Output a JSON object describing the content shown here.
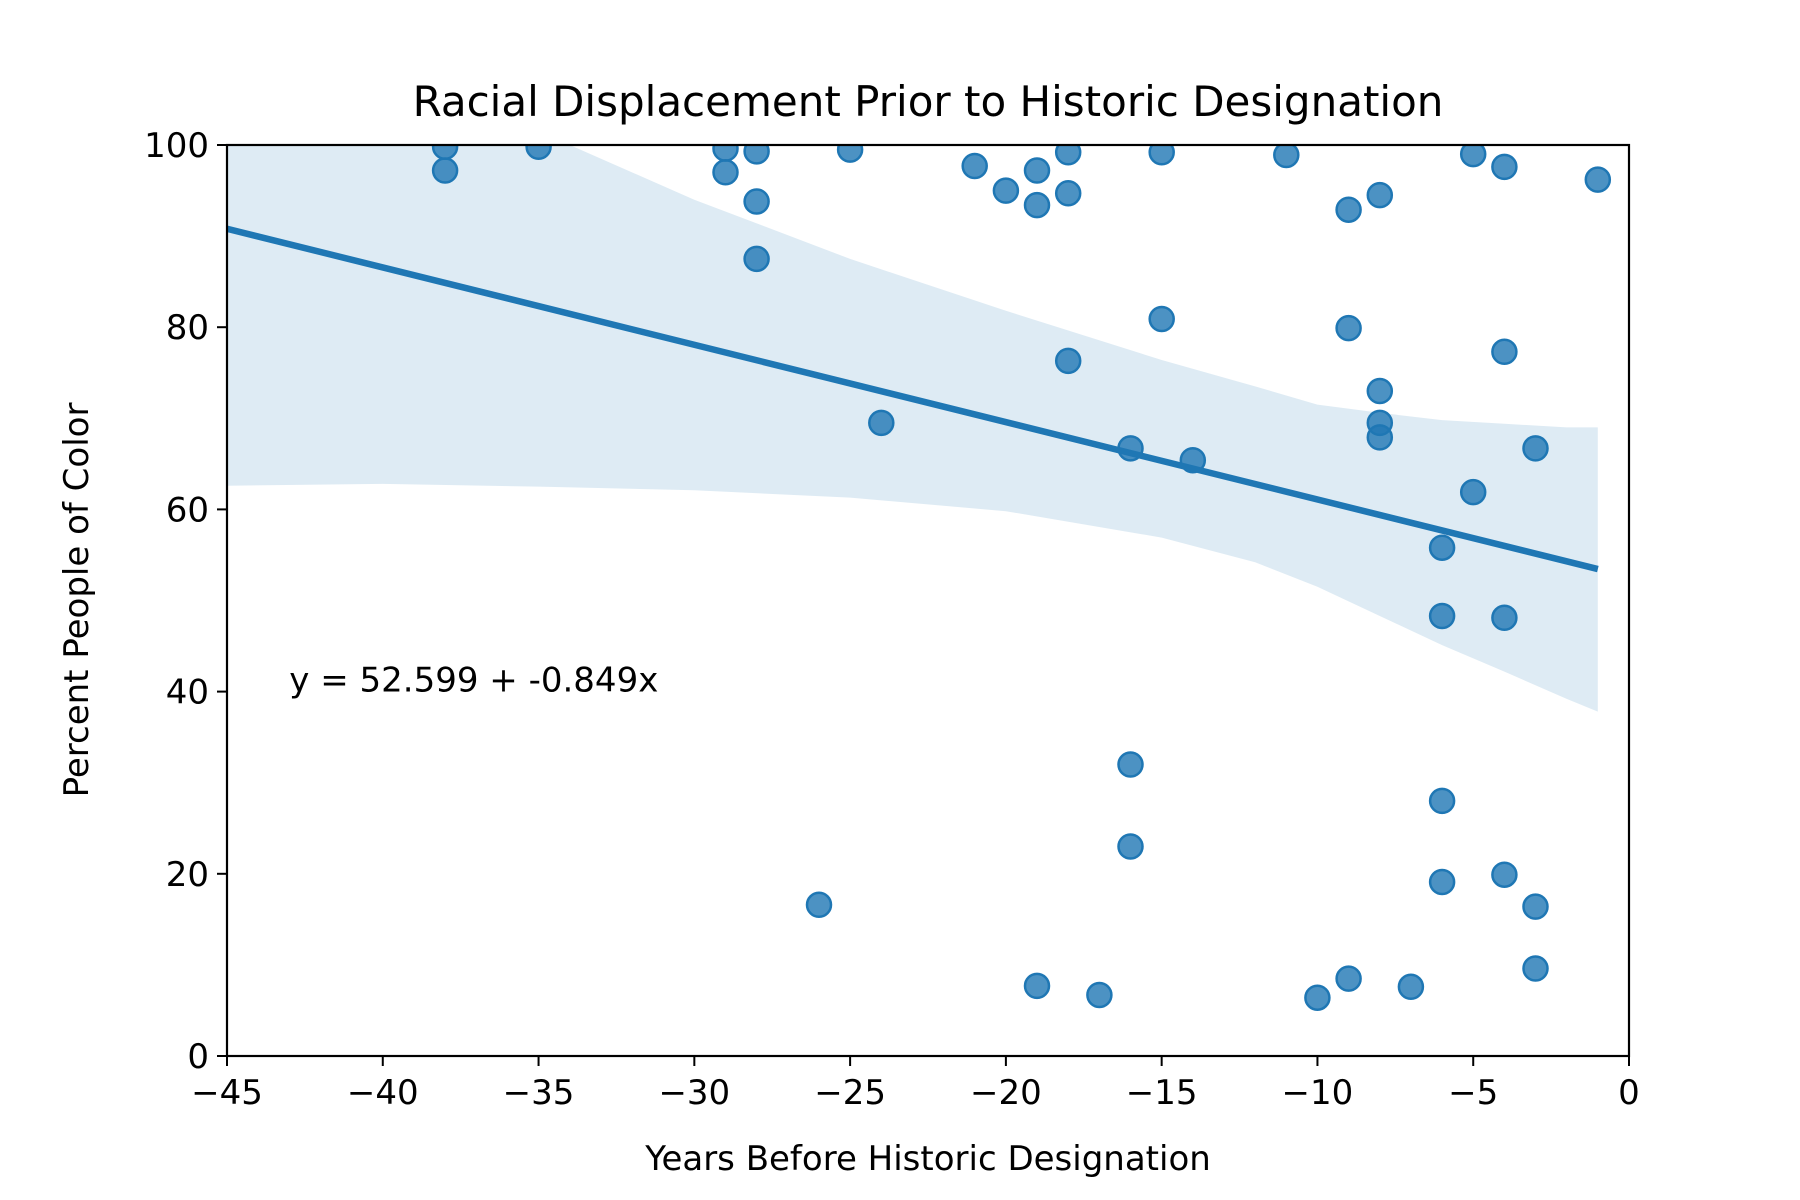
{
  "chart_data": {
    "type": "scatter",
    "title": "Racial Displacement Prior to Historic Designation",
    "xlabel": "Years Before Historic Designation",
    "ylabel": "Percent People of Color",
    "xlim": [
      -45,
      0
    ],
    "ylim": [
      0,
      100
    ],
    "xticks": [
      -45,
      -40,
      -35,
      -30,
      -25,
      -20,
      -15,
      -10,
      -5,
      0
    ],
    "xtick_labels": [
      "−45",
      "−40",
      "−35",
      "−30",
      "−25",
      "−20",
      "−15",
      "−10",
      "−5",
      "0"
    ],
    "yticks": [
      0,
      20,
      40,
      60,
      80,
      100
    ],
    "ytick_labels": [
      "0",
      "20",
      "40",
      "60",
      "80",
      "100"
    ],
    "grid": false,
    "annotation": {
      "text": "y = 52.599 + -0.849x",
      "x": -43,
      "y": 40
    },
    "colors": {
      "points": "#1f77b4",
      "fit_line": "#1f77b4",
      "confidence_band": "#1f77b4"
    },
    "points": [
      {
        "x": -38,
        "y": 99.8
      },
      {
        "x": -38,
        "y": 97.2
      },
      {
        "x": -35,
        "y": 99.8
      },
      {
        "x": -29,
        "y": 99.6
      },
      {
        "x": -29,
        "y": 97.0
      },
      {
        "x": -28,
        "y": 99.3
      },
      {
        "x": -28,
        "y": 93.8
      },
      {
        "x": -28,
        "y": 87.5
      },
      {
        "x": -26,
        "y": 16.6
      },
      {
        "x": -25,
        "y": 99.5
      },
      {
        "x": -24,
        "y": 69.5
      },
      {
        "x": -21,
        "y": 97.7
      },
      {
        "x": -20,
        "y": 95.0
      },
      {
        "x": -19,
        "y": 97.2
      },
      {
        "x": -19,
        "y": 93.4
      },
      {
        "x": -19,
        "y": 7.7
      },
      {
        "x": -18,
        "y": 99.2
      },
      {
        "x": -18,
        "y": 94.7
      },
      {
        "x": -18,
        "y": 76.3
      },
      {
        "x": -17,
        "y": 6.7
      },
      {
        "x": -16,
        "y": 66.7
      },
      {
        "x": -16,
        "y": 32.0
      },
      {
        "x": -16,
        "y": 23.0
      },
      {
        "x": -15,
        "y": 99.2
      },
      {
        "x": -15,
        "y": 80.9
      },
      {
        "x": -14,
        "y": 65.4
      },
      {
        "x": -11,
        "y": 98.9
      },
      {
        "x": -10,
        "y": 6.4
      },
      {
        "x": -9,
        "y": 92.9
      },
      {
        "x": -9,
        "y": 79.9
      },
      {
        "x": -9,
        "y": 8.5
      },
      {
        "x": -8,
        "y": 94.5
      },
      {
        "x": -8,
        "y": 73.0
      },
      {
        "x": -8,
        "y": 69.5
      },
      {
        "x": -8,
        "y": 67.9
      },
      {
        "x": -7,
        "y": 7.6
      },
      {
        "x": -6,
        "y": 55.8
      },
      {
        "x": -6,
        "y": 48.3
      },
      {
        "x": -6,
        "y": 28.0
      },
      {
        "x": -6,
        "y": 19.1
      },
      {
        "x": -5,
        "y": 99.0
      },
      {
        "x": -5,
        "y": 61.9
      },
      {
        "x": -4,
        "y": 97.6
      },
      {
        "x": -4,
        "y": 77.3
      },
      {
        "x": -4,
        "y": 48.1
      },
      {
        "x": -4,
        "y": 19.9
      },
      {
        "x": -3,
        "y": 66.7
      },
      {
        "x": -3,
        "y": 16.4
      },
      {
        "x": -3,
        "y": 9.6
      },
      {
        "x": -1,
        "y": 96.2
      }
    ],
    "regression": {
      "intercept": 52.599,
      "slope": -0.849,
      "x_range": [
        -45,
        -1
      ],
      "confidence_band": [
        {
          "x": -45,
          "lower": 62.6,
          "upper": 118.9
        },
        {
          "x": -40,
          "lower": 62.8,
          "upper": 110.0
        },
        {
          "x": -35,
          "lower": 62.5,
          "upper": 101.5
        },
        {
          "x": -30,
          "lower": 62.1,
          "upper": 94.0
        },
        {
          "x": -25,
          "lower": 61.3,
          "upper": 87.5
        },
        {
          "x": -20,
          "lower": 59.8,
          "upper": 81.8
        },
        {
          "x": -15,
          "lower": 56.9,
          "upper": 76.4
        },
        {
          "x": -12,
          "lower": 54.2,
          "upper": 73.5
        },
        {
          "x": -10,
          "lower": 51.5,
          "upper": 71.5
        },
        {
          "x": -8,
          "lower": 48.3,
          "upper": 70.6
        },
        {
          "x": -6,
          "lower": 45.1,
          "upper": 69.8
        },
        {
          "x": -4,
          "lower": 42.2,
          "upper": 69.4
        },
        {
          "x": -2,
          "lower": 39.2,
          "upper": 69.0
        },
        {
          "x": -1,
          "lower": 37.8,
          "upper": 69.0
        }
      ]
    }
  }
}
